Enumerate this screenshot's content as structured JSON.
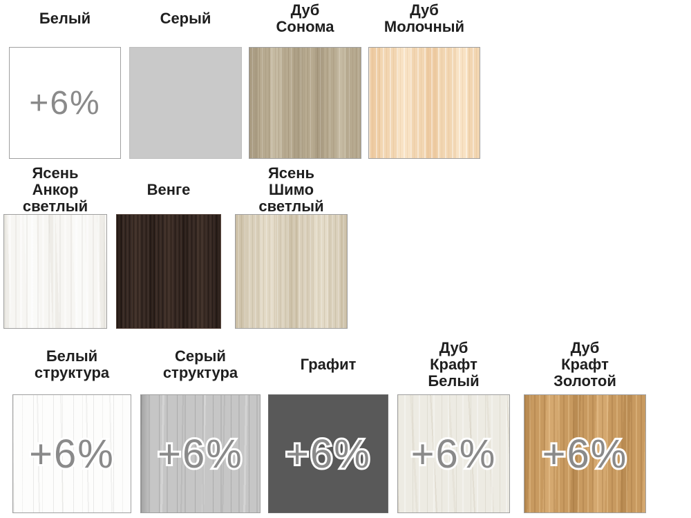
{
  "surcharge": "+6%",
  "colors": {
    "background": "#ffffff",
    "label_text": "#1f1f1f",
    "surcharge_text": "#8a8a8a",
    "surcharge_outline": "#ffffff",
    "swatch_border": "#9f9f9f"
  },
  "materials": [
    {
      "name": "Белый",
      "texture": "white",
      "base_color": "#ffffff",
      "surcharge": true
    },
    {
      "name": "Серый",
      "texture": "gray",
      "base_color": "#c9c9c9",
      "surcharge": false
    },
    {
      "name": "Дуб\nСонома",
      "texture": "sonoma-oak",
      "base_color": "#b7aa90",
      "surcharge": false
    },
    {
      "name": "Дуб\nМолочный",
      "texture": "milky-oak",
      "base_color": "#f2d6b2",
      "surcharge": false
    },
    {
      "name": "Ясень\nАнкор\nсветлый",
      "texture": "ankor-ash-light",
      "base_color": "#f7f6f3",
      "surcharge": false
    },
    {
      "name": "Венге",
      "texture": "wenge",
      "base_color": "#362822",
      "surcharge": false
    },
    {
      "name": "Ясень\nШимо\nсветлый",
      "texture": "shimo-ash-light",
      "base_color": "#dad0bb",
      "surcharge": false
    },
    {
      "name": "Белый\nструктура",
      "texture": "white-structure",
      "base_color": "#fdfdfc",
      "surcharge": true
    },
    {
      "name": "Серый\nструктура",
      "texture": "gray-structure",
      "base_color": "#c6c6c6",
      "surcharge": true
    },
    {
      "name": "Графит",
      "texture": "graphite",
      "base_color": "#595959",
      "surcharge": true
    },
    {
      "name": "Дуб\nКрафт\nБелый",
      "texture": "craft-oak-white",
      "base_color": "#edebe3",
      "surcharge": true
    },
    {
      "name": "Дуб\nКрафт\nЗолотой",
      "texture": "craft-oak-gold",
      "base_color": "#c89a60",
      "surcharge": true
    }
  ]
}
